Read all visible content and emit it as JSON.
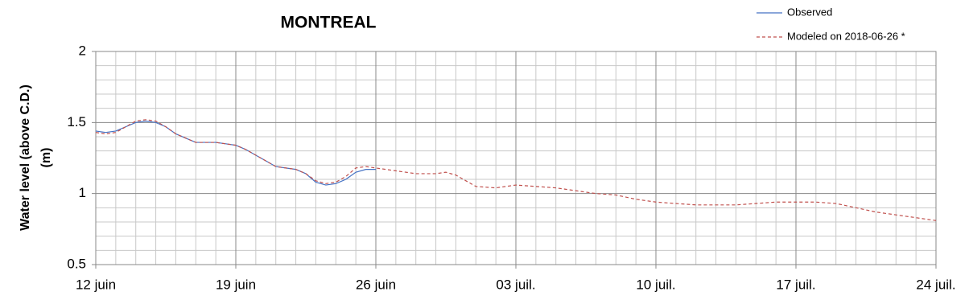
{
  "chart_data": {
    "type": "line",
    "title": "MONTREAL",
    "ylabel": [
      "Water level (above C.D.)",
      "(m)"
    ],
    "xlim": [
      0,
      42
    ],
    "xticks": [
      {
        "value": 0,
        "label": "12 juin"
      },
      {
        "value": 7,
        "label": "19 juin"
      },
      {
        "value": 14,
        "label": "26 juin"
      },
      {
        "value": 21,
        "label": "03 juil."
      },
      {
        "value": 28,
        "label": "10 juil."
      },
      {
        "value": 35,
        "label": "17 juil."
      },
      {
        "value": 42,
        "label": "24 juil."
      }
    ],
    "ylim": [
      0.5,
      2
    ],
    "yticks": [
      0.5,
      1,
      1.5,
      2
    ],
    "grid": true,
    "minor_grid": true,
    "legend": "top-right",
    "series": [
      {
        "name": "Observed",
        "color": "#4472c4",
        "dash": false,
        "x": [
          0,
          0.5,
          1,
          1.5,
          2,
          2.5,
          3,
          3.5,
          4,
          4.5,
          5,
          5.5,
          6,
          6.5,
          7,
          7.5,
          8,
          8.5,
          9,
          9.5,
          10,
          10.5,
          11,
          11.5,
          12,
          12.5,
          13,
          13.5,
          14
        ],
        "values": [
          1.44,
          1.43,
          1.44,
          1.47,
          1.5,
          1.51,
          1.5,
          1.47,
          1.42,
          1.39,
          1.36,
          1.36,
          1.36,
          1.35,
          1.34,
          1.31,
          1.27,
          1.23,
          1.19,
          1.18,
          1.17,
          1.14,
          1.08,
          1.06,
          1.07,
          1.1,
          1.15,
          1.17,
          1.17
        ]
      },
      {
        "name": "Modeled on 2018-06-26 *",
        "color": "#c0504d",
        "dash": true,
        "x": [
          0,
          0.5,
          1,
          1.5,
          2,
          2.5,
          3,
          3.5,
          4,
          4.5,
          5,
          5.5,
          6,
          6.5,
          7,
          7.5,
          8,
          8.5,
          9,
          9.5,
          10,
          10.5,
          11,
          11.5,
          12,
          12.5,
          13,
          13.5,
          14,
          15,
          16,
          17,
          17.5,
          18,
          19,
          20,
          20.5,
          21,
          22,
          23,
          24,
          25,
          26,
          27,
          28,
          29,
          30,
          31,
          32,
          33,
          34,
          35,
          36,
          37,
          38,
          39,
          40,
          41,
          42
        ],
        "values": [
          1.43,
          1.42,
          1.43,
          1.47,
          1.51,
          1.52,
          1.51,
          1.47,
          1.42,
          1.39,
          1.36,
          1.36,
          1.36,
          1.35,
          1.34,
          1.31,
          1.27,
          1.23,
          1.19,
          1.18,
          1.17,
          1.14,
          1.09,
          1.07,
          1.08,
          1.12,
          1.18,
          1.19,
          1.18,
          1.16,
          1.14,
          1.14,
          1.15,
          1.13,
          1.05,
          1.04,
          1.05,
          1.06,
          1.05,
          1.04,
          1.02,
          1.0,
          0.99,
          0.96,
          0.94,
          0.93,
          0.92,
          0.92,
          0.92,
          0.93,
          0.94,
          0.94,
          0.94,
          0.93,
          0.9,
          0.87,
          0.85,
          0.83,
          0.81
        ]
      }
    ]
  }
}
